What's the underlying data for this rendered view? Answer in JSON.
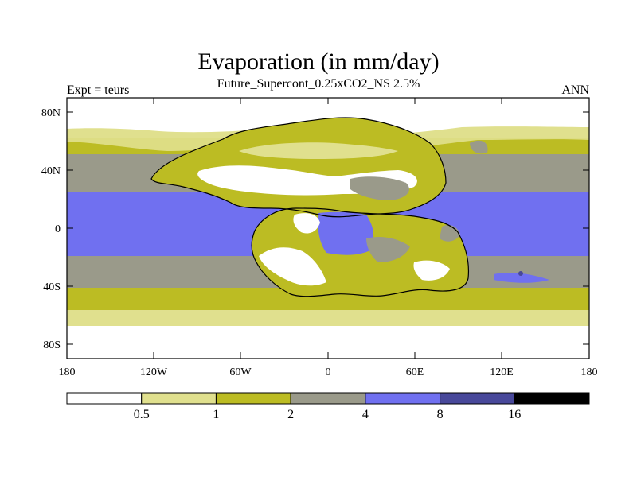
{
  "header": {
    "title": "Evaporation (in mm/day)",
    "subtitle": "Future_Supercont_0.25xCO2_NS 2.5%",
    "left_label": "Expt = teurs",
    "right_label": "ANN"
  },
  "axes": {
    "y_ticks": [
      "80N",
      "40N",
      "0",
      "40S",
      "80S"
    ],
    "x_ticks": [
      "180",
      "120W",
      "60W",
      "0",
      "60E",
      "120E",
      "180"
    ]
  },
  "colorbar": {
    "colors": [
      "#ffffff",
      "#e0e08e",
      "#bcbc23",
      "#9a9a8a",
      "#7070f0",
      "#48489a",
      "#000000"
    ],
    "labels": [
      "0.5",
      "1",
      "2",
      "4",
      "8",
      "16"
    ]
  }
}
